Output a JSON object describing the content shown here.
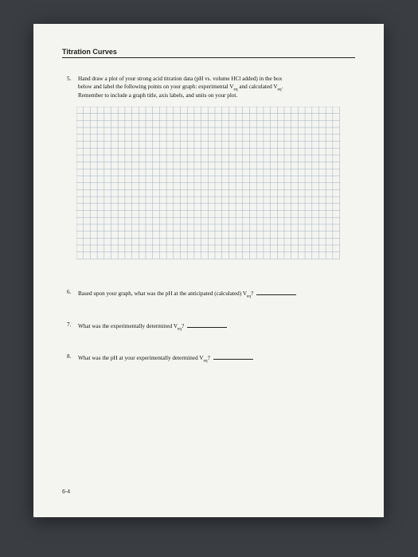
{
  "header": {
    "title": "Titration Curves"
  },
  "q5": {
    "number": "5.",
    "text_line1": "Hand draw a plot of your strong acid titration data (pH vs. volume HCl added) in the box",
    "text_line2_a": "below and label the following points on your graph: experimental V",
    "text_line2_sub1": "eq",
    "text_line2_b": " and calculated V",
    "text_line2_sub2": "eq",
    "text_line2_c": ".",
    "text_line3": "Remember to include a graph title, axis labels, and units on your plot."
  },
  "grid": {
    "rows": 22,
    "cols": 38,
    "cell": 8.7,
    "stroke": "#8aa0b8",
    "stroke_width": 0.4
  },
  "q6": {
    "number": "6.",
    "text_a": "Based upon your graph, what was the pH at the anticipated (calculated) V",
    "text_sub": "eq",
    "text_b": "?"
  },
  "q7": {
    "number": "7.",
    "text_a": "What was the experimentally determined V",
    "text_sub": "eq",
    "text_b": "?"
  },
  "q8": {
    "number": "8.",
    "text_a": "What was the pH at your experimentally determined V",
    "text_sub": "eq",
    "text_b": "?"
  },
  "footer": {
    "page": "6-4"
  }
}
